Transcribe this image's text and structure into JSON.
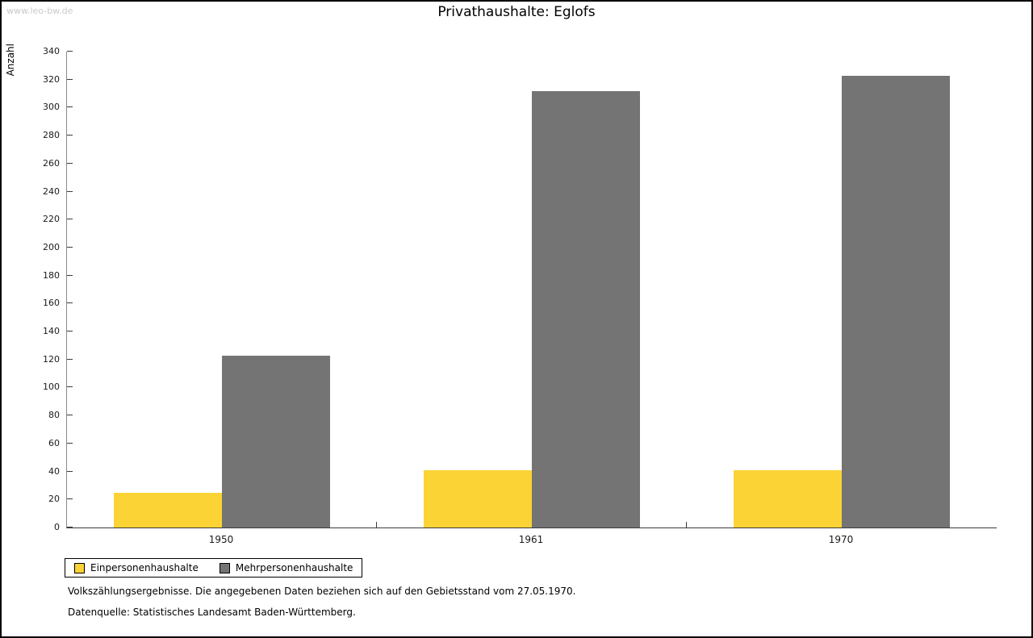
{
  "watermark": "www.leo-bw.de",
  "title": "Privathaushalte: Eglofs",
  "ylabel": "Anzahl",
  "chart_data": {
    "type": "bar",
    "title": "Privathaushalte: Eglofs",
    "xlabel": "",
    "ylabel": "Anzahl",
    "categories": [
      "1950",
      "1961",
      "1970"
    ],
    "series": [
      {
        "name": "Einpersonenhaushalte",
        "color": "#fbd335",
        "values": [
          25,
          41,
          41
        ]
      },
      {
        "name": "Mehrpersonenhaushalte",
        "color": "#747474",
        "values": [
          123,
          312,
          323
        ]
      }
    ],
    "ylim": [
      0,
      340
    ],
    "ytick_step": 20,
    "grid": false,
    "legend_position": "bottom-left"
  },
  "footnotes": [
    "Volkszählungsergebnisse. Die angegebenen Daten beziehen sich auf den Gebietsstand vom 27.05.1970.",
    "Datenquelle: Statistisches Landesamt Baden-Württemberg."
  ]
}
